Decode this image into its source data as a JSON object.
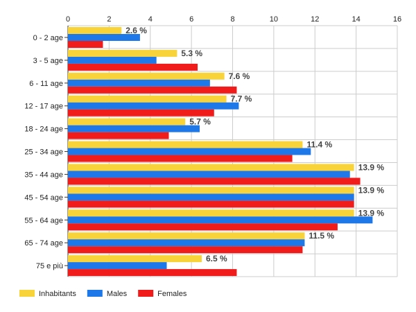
{
  "chart_data": {
    "type": "bar",
    "orientation": "horizontal",
    "categories": [
      "0 - 2 age",
      "3 - 5 age",
      "6 - 11 age",
      "12 - 17 age",
      "18 - 24 age",
      "25 - 34 age",
      "35 - 44 age",
      "45 - 54 age",
      "55 - 64 age",
      "65 - 74 age",
      "75 e più"
    ],
    "series": [
      {
        "name": "Inhabitants",
        "color": "#f8d33a",
        "values": [
          2.6,
          5.3,
          7.6,
          7.7,
          5.7,
          11.4,
          13.9,
          13.9,
          13.9,
          11.5,
          6.5
        ]
      },
      {
        "name": "Males",
        "color": "#1f78e8",
        "values": [
          3.5,
          4.3,
          6.9,
          8.3,
          6.4,
          11.8,
          13.7,
          13.9,
          14.8,
          11.5,
          4.8
        ]
      },
      {
        "name": "Females",
        "color": "#f01c1c",
        "values": [
          1.7,
          6.3,
          8.2,
          7.1,
          4.9,
          10.9,
          14.2,
          13.9,
          13.1,
          11.4,
          8.2
        ]
      }
    ],
    "data_labels": [
      "2.6 %",
      "5.3 %",
      "7.6 %",
      "7.7 %",
      "5.7 %",
      "11.4 %",
      "13.9 %",
      "13.9 %",
      "13.9 %",
      "11.5 %",
      "6.5 %"
    ],
    "x_ticks": [
      "0",
      "2",
      "4",
      "6",
      "8",
      "10",
      "12",
      "14",
      "16"
    ],
    "xlim": [
      0,
      16
    ],
    "title": "",
    "xlabel": "",
    "ylabel": "",
    "grid": true,
    "axis_position": "top",
    "legend_position": "bottom-left"
  }
}
